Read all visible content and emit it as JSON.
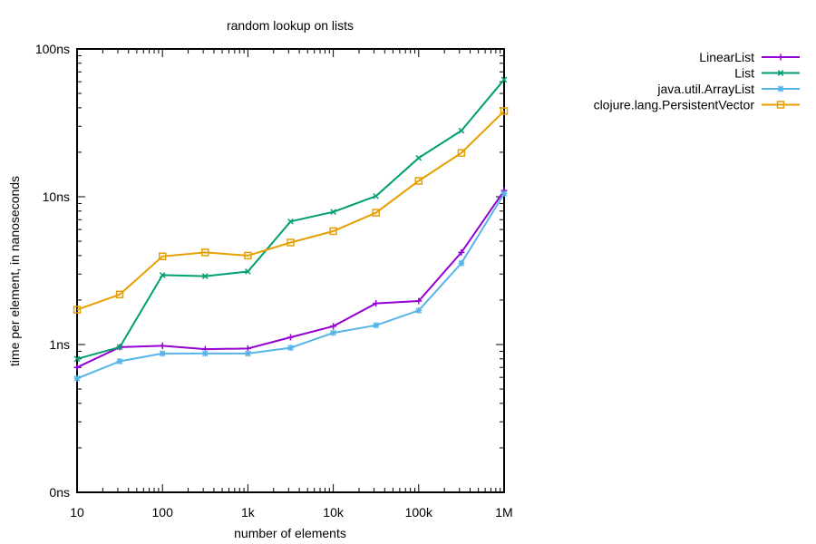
{
  "chart_data": {
    "type": "line",
    "title": "random lookup on lists",
    "xlabel": "number of elements",
    "ylabel": "time per element, in nanoseconds",
    "x_scale": "log",
    "y_scale": "log",
    "xlim": [
      10,
      1000000
    ],
    "ylim": [
      0.1,
      100
    ],
    "x_ticks": [
      {
        "value": 10,
        "label": "10"
      },
      {
        "value": 100,
        "label": "100"
      },
      {
        "value": 1000,
        "label": "1k"
      },
      {
        "value": 10000,
        "label": "10k"
      },
      {
        "value": 100000,
        "label": "100k"
      },
      {
        "value": 1000000,
        "label": "1M"
      }
    ],
    "y_ticks": [
      {
        "value": 0.1,
        "label": "0ns"
      },
      {
        "value": 1,
        "label": "1ns"
      },
      {
        "value": 10,
        "label": "10ns"
      },
      {
        "value": 100,
        "label": "100ns"
      }
    ],
    "x": [
      10,
      31.6,
      100,
      316,
      1000,
      3160,
      10000,
      31600,
      100000,
      316000,
      1000000
    ],
    "series": [
      {
        "name": "LinearList",
        "color": "#9400d3",
        "marker": "plus",
        "values": [
          0.7,
          0.96,
          0.98,
          0.93,
          0.94,
          1.12,
          1.33,
          1.9,
          1.97,
          4.2,
          11.0
        ]
      },
      {
        "name": "List",
        "color": "#009e73",
        "marker": "x",
        "values": [
          0.8,
          0.96,
          2.95,
          2.9,
          3.12,
          6.8,
          7.9,
          10.1,
          18.3,
          28.0,
          62.0
        ]
      },
      {
        "name": "java.util.ArrayList",
        "color": "#56b4e9",
        "marker": "star",
        "values": [
          0.59,
          0.77,
          0.87,
          0.87,
          0.87,
          0.95,
          1.2,
          1.35,
          1.7,
          3.55,
          10.5
        ]
      },
      {
        "name": "clojure.lang.PersistentVector",
        "color": "#e69f00",
        "marker": "square",
        "values": [
          1.72,
          2.18,
          3.95,
          4.2,
          4.0,
          4.9,
          5.85,
          7.8,
          12.8,
          19.8,
          38.0
        ]
      }
    ],
    "grid": false,
    "legend_position": "top-right outside"
  }
}
